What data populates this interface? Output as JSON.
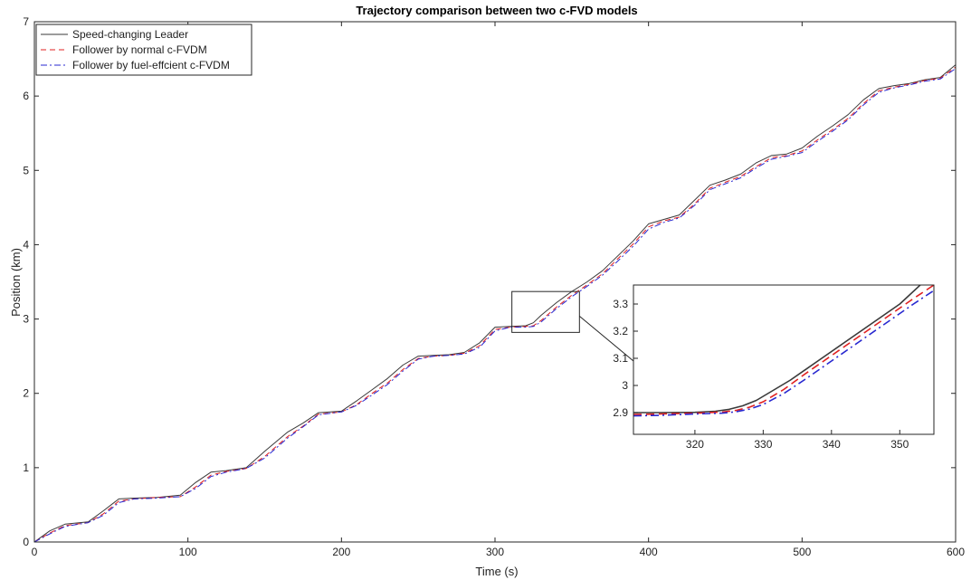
{
  "chart_data": [
    {
      "type": "line",
      "title": "Trajectory comparison between two c-FVD models",
      "xlabel": "Time (s)",
      "ylabel": "Position (km)",
      "xlim": [
        0,
        600
      ],
      "ylim": [
        0,
        7
      ],
      "xticks": [
        0,
        100,
        200,
        300,
        400,
        500,
        600
      ],
      "yticks": [
        0,
        1,
        2,
        3,
        4,
        5,
        6,
        7
      ],
      "grid": false,
      "legend_position": "top-left",
      "series": [
        {
          "name": "Speed-changing Leader",
          "color": "#3a3a3a",
          "style": "solid",
          "x": [
            0,
            10,
            20,
            35,
            45,
            55,
            65,
            80,
            95,
            105,
            115,
            125,
            138,
            150,
            165,
            175,
            185,
            200,
            210,
            220,
            230,
            240,
            250,
            260,
            270,
            280,
            290,
            300,
            310,
            320,
            325,
            330,
            340,
            350,
            360,
            370,
            380,
            390,
            400,
            410,
            420,
            430,
            440,
            450,
            460,
            470,
            480,
            490,
            500,
            510,
            520,
            530,
            540,
            550,
            560,
            570,
            580,
            590,
            600
          ],
          "y": [
            0.0,
            0.15,
            0.24,
            0.27,
            0.42,
            0.58,
            0.59,
            0.6,
            0.63,
            0.8,
            0.94,
            0.96,
            1.0,
            1.22,
            1.48,
            1.6,
            1.74,
            1.76,
            1.9,
            2.05,
            2.2,
            2.38,
            2.5,
            2.51,
            2.52,
            2.55,
            2.68,
            2.89,
            2.9,
            2.91,
            2.95,
            3.05,
            3.22,
            3.37,
            3.5,
            3.65,
            3.85,
            4.05,
            4.28,
            4.34,
            4.4,
            4.6,
            4.8,
            4.87,
            4.95,
            5.1,
            5.2,
            5.22,
            5.3,
            5.46,
            5.6,
            5.75,
            5.95,
            6.1,
            6.14,
            6.17,
            6.22,
            6.25,
            6.42
          ]
        },
        {
          "name": "Follower by normal c-FVDM",
          "color": "#e02020",
          "style": "dashed",
          "x": [
            0,
            10,
            20,
            35,
            45,
            55,
            65,
            80,
            95,
            105,
            115,
            125,
            138,
            150,
            165,
            175,
            185,
            200,
            210,
            220,
            230,
            240,
            250,
            260,
            270,
            280,
            290,
            300,
            310,
            320,
            325,
            330,
            340,
            350,
            360,
            370,
            380,
            390,
            400,
            410,
            420,
            430,
            440,
            450,
            460,
            470,
            480,
            490,
            500,
            510,
            520,
            530,
            540,
            550,
            560,
            570,
            580,
            590,
            600
          ],
          "y": [
            0.0,
            0.12,
            0.22,
            0.26,
            0.38,
            0.55,
            0.58,
            0.6,
            0.61,
            0.74,
            0.9,
            0.95,
            0.99,
            1.15,
            1.42,
            1.56,
            1.72,
            1.75,
            1.85,
            2.0,
            2.14,
            2.32,
            2.47,
            2.5,
            2.51,
            2.54,
            2.64,
            2.86,
            2.89,
            2.9,
            2.91,
            2.98,
            3.16,
            3.32,
            3.46,
            3.61,
            3.81,
            4.01,
            4.24,
            4.32,
            4.37,
            4.55,
            4.76,
            4.84,
            4.92,
            5.05,
            5.17,
            5.2,
            5.26,
            5.41,
            5.55,
            5.7,
            5.9,
            6.07,
            6.12,
            6.16,
            6.21,
            6.24,
            6.39
          ]
        },
        {
          "name": "Follower by fuel-effcient c-FVDM",
          "color": "#2828d0",
          "style": "dashdot",
          "x": [
            0,
            10,
            20,
            35,
            45,
            55,
            65,
            80,
            95,
            105,
            115,
            125,
            138,
            150,
            165,
            175,
            185,
            200,
            210,
            220,
            230,
            240,
            250,
            260,
            270,
            280,
            290,
            300,
            310,
            320,
            325,
            330,
            340,
            350,
            360,
            370,
            380,
            390,
            400,
            410,
            420,
            430,
            440,
            450,
            460,
            470,
            480,
            490,
            500,
            510,
            520,
            530,
            540,
            550,
            560,
            570,
            580,
            590,
            600
          ],
          "y": [
            0.0,
            0.11,
            0.21,
            0.26,
            0.36,
            0.53,
            0.58,
            0.59,
            0.61,
            0.72,
            0.88,
            0.94,
            0.99,
            1.13,
            1.4,
            1.55,
            1.71,
            1.75,
            1.84,
            1.98,
            2.12,
            2.3,
            2.46,
            2.5,
            2.51,
            2.53,
            2.62,
            2.84,
            2.89,
            2.89,
            2.9,
            2.96,
            3.14,
            3.3,
            3.44,
            3.59,
            3.78,
            3.98,
            4.21,
            4.3,
            4.36,
            4.53,
            4.74,
            4.82,
            4.9,
            5.03,
            5.15,
            5.19,
            5.24,
            5.39,
            5.53,
            5.68,
            5.88,
            6.05,
            6.11,
            6.15,
            6.2,
            6.23,
            6.37
          ]
        }
      ]
    },
    {
      "type": "line",
      "title": "",
      "xlabel": "",
      "ylabel": "",
      "xlim": [
        311,
        355
      ],
      "ylim": [
        2.82,
        3.37
      ],
      "xticks": [
        320,
        330,
        340,
        350
      ],
      "yticks": [
        2.9,
        3,
        3.1,
        3.2,
        3.3
      ],
      "grid": false,
      "series": [
        {
          "color": "#3a3a3a",
          "style": "solid",
          "x": [
            311,
            315,
            320,
            323,
            325,
            327,
            329,
            331,
            334,
            338,
            342,
            346,
            350,
            353
          ],
          "y": [
            2.9,
            2.9,
            2.901,
            2.905,
            2.912,
            2.925,
            2.945,
            2.975,
            3.02,
            3.09,
            3.16,
            3.23,
            3.3,
            3.37
          ]
        },
        {
          "color": "#e02020",
          "style": "dashed",
          "x": [
            311,
            315,
            320,
            324,
            326,
            328,
            330,
            333,
            336,
            340,
            344,
            348,
            352,
            355
          ],
          "y": [
            2.893,
            2.895,
            2.898,
            2.902,
            2.908,
            2.92,
            2.94,
            2.985,
            3.04,
            3.11,
            3.18,
            3.25,
            3.32,
            3.37
          ]
        },
        {
          "color": "#2828d0",
          "style": "dashdot",
          "x": [
            311,
            315,
            320,
            324,
            326,
            328,
            330,
            333,
            336,
            340,
            344,
            348,
            352,
            355
          ],
          "y": [
            2.888,
            2.89,
            2.895,
            2.898,
            2.903,
            2.913,
            2.93,
            2.97,
            3.02,
            3.09,
            3.16,
            3.23,
            3.3,
            3.35
          ]
        }
      ]
    }
  ]
}
